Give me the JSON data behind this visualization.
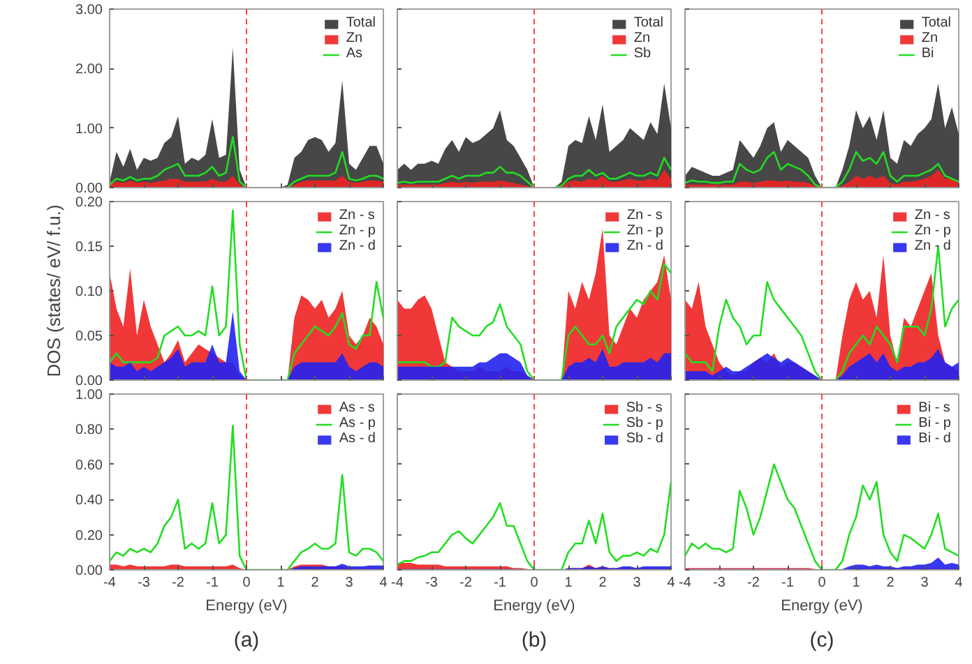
{
  "chart_data": [
    {
      "type": "area",
      "x": [
        -4,
        -3.8,
        -3.6,
        -3.4,
        -3.2,
        -3,
        -2.8,
        -2.6,
        -2.4,
        -2.2,
        -2,
        -1.8,
        -1.6,
        -1.4,
        -1.2,
        -1,
        -0.8,
        -0.6,
        -0.4,
        -0.2,
        0,
        0.2,
        0.4,
        0.6,
        0.8,
        1,
        1.2,
        1.4,
        1.6,
        1.8,
        2,
        2.2,
        2.4,
        2.6,
        2.8,
        3,
        3.2,
        3.4,
        3.6,
        3.8,
        4
      ],
      "series": [
        {
          "name": "Total",
          "color": "#333333",
          "values": [
            0.1,
            0.6,
            0.35,
            0.65,
            0.3,
            0.5,
            0.45,
            0.5,
            0.75,
            0.85,
            1.2,
            0.4,
            0.5,
            0.45,
            0.55,
            1.15,
            0.5,
            0.55,
            2.35,
            0.3,
            0,
            0,
            0,
            0,
            0,
            0,
            0.05,
            0.5,
            0.6,
            0.8,
            0.85,
            0.8,
            0.6,
            0.75,
            1.8,
            0.4,
            0.3,
            0.5,
            0.7,
            0.7,
            0.4
          ]
        },
        {
          "name": "Zn",
          "color": "#ee2222",
          "values": [
            0.05,
            0.1,
            0.08,
            0.12,
            0.08,
            0.1,
            0.08,
            0.1,
            0.12,
            0.15,
            0.15,
            0.1,
            0.1,
            0.1,
            0.1,
            0.15,
            0.1,
            0.1,
            0.2,
            0.05,
            0,
            0,
            0,
            0,
            0,
            0,
            0,
            0.05,
            0.1,
            0.12,
            0.12,
            0.12,
            0.12,
            0.12,
            0.2,
            0.1,
            0.08,
            0.1,
            0.12,
            0.12,
            0.1
          ]
        },
        {
          "name": "As",
          "type": "line",
          "color": "#22dd22",
          "values": [
            0.05,
            0.15,
            0.12,
            0.18,
            0.12,
            0.15,
            0.15,
            0.2,
            0.3,
            0.35,
            0.4,
            0.2,
            0.2,
            0.2,
            0.25,
            0.35,
            0.2,
            0.25,
            0.85,
            0.1,
            0,
            null,
            null,
            null,
            null,
            0,
            0,
            0.1,
            0.15,
            0.2,
            0.2,
            0.2,
            0.2,
            0.25,
            0.6,
            0.15,
            0.12,
            0.15,
            0.2,
            0.2,
            0.15
          ]
        }
      ],
      "xlim": [
        -4,
        4
      ],
      "xticks": [
        -4,
        -3,
        -2,
        -1,
        0,
        1,
        2,
        3,
        4
      ],
      "ylim": [
        0,
        3
      ],
      "yticks": [
        {
          "value": 0,
          "label": "0.00"
        },
        {
          "value": 1,
          "label": "1.00"
        },
        {
          "value": 2,
          "label": "2.00"
        },
        {
          "value": 3,
          "label": "3.00"
        }
      ],
      "tick_labels": "y",
      "legend": "top right",
      "ref_lines": [
        {
          "axis": "x",
          "value": 0,
          "color": "#ff4444",
          "line_style": "dashed"
        }
      ]
    },
    {
      "type": "area",
      "x": [
        -4,
        -3.8,
        -3.6,
        -3.4,
        -3.2,
        -3,
        -2.8,
        -2.6,
        -2.4,
        -2.2,
        -2,
        -1.8,
        -1.6,
        -1.4,
        -1.2,
        -1,
        -0.8,
        -0.6,
        -0.4,
        -0.2,
        0,
        0.2,
        0.4,
        0.6,
        0.8,
        1,
        1.2,
        1.4,
        1.6,
        1.8,
        2,
        2.2,
        2.4,
        2.6,
        2.8,
        3,
        3.2,
        3.4,
        3.6,
        3.8,
        4
      ],
      "series": [
        {
          "name": "Total",
          "color": "#333333",
          "values": [
            0.3,
            0.4,
            0.3,
            0.4,
            0.4,
            0.45,
            0.4,
            0.65,
            0.8,
            0.6,
            0.85,
            0.75,
            0.8,
            0.9,
            1.0,
            1.3,
            0.8,
            0.7,
            0.5,
            0.3,
            0,
            0,
            0,
            0,
            0.1,
            0.7,
            0.8,
            0.75,
            1.2,
            0.8,
            1.4,
            0.6,
            0.7,
            0.8,
            1.0,
            0.9,
            0.8,
            1.1,
            0.9,
            1.75,
            1.0
          ]
        },
        {
          "name": "Zn",
          "color": "#ee2222",
          "values": [
            0.05,
            0.05,
            0.05,
            0.05,
            0.05,
            0.05,
            0.05,
            0.08,
            0.1,
            0.08,
            0.1,
            0.08,
            0.1,
            0.1,
            0.1,
            0.12,
            0.1,
            0.08,
            0.05,
            0.03,
            0,
            0,
            0,
            0,
            0.02,
            0.1,
            0.12,
            0.1,
            0.15,
            0.12,
            0.2,
            0.1,
            0.1,
            0.12,
            0.15,
            0.12,
            0.12,
            0.15,
            0.12,
            0.3,
            0.15
          ]
        },
        {
          "name": "Sb",
          "type": "line",
          "color": "#22dd22",
          "values": [
            0.08,
            0.1,
            0.08,
            0.1,
            0.1,
            0.1,
            0.1,
            0.15,
            0.2,
            0.15,
            0.2,
            0.2,
            0.2,
            0.25,
            0.25,
            0.35,
            0.25,
            0.25,
            0.2,
            0.1,
            0,
            null,
            null,
            0,
            0.03,
            0.15,
            0.2,
            0.2,
            0.3,
            0.2,
            0.25,
            0.15,
            0.15,
            0.2,
            0.25,
            0.2,
            0.2,
            0.25,
            0.2,
            0.5,
            0.3
          ]
        }
      ],
      "xlim": [
        -4,
        4
      ],
      "xticks": [
        -4,
        -3,
        -2,
        -1,
        0,
        1,
        2,
        3,
        4
      ],
      "ylim": [
        0,
        3
      ],
      "yticks": [
        0,
        1,
        2,
        3
      ],
      "tick_labels": false,
      "legend": "top right",
      "ref_lines": [
        {
          "axis": "x",
          "value": 0,
          "color": "#ff4444",
          "line_style": "dashed"
        }
      ]
    },
    {
      "type": "area",
      "x": [
        -4,
        -3.8,
        -3.6,
        -3.4,
        -3.2,
        -3,
        -2.8,
        -2.6,
        -2.4,
        -2.2,
        -2,
        -1.8,
        -1.6,
        -1.4,
        -1.2,
        -1,
        -0.8,
        -0.6,
        -0.4,
        -0.2,
        0,
        0.2,
        0.4,
        0.6,
        0.8,
        1,
        1.2,
        1.4,
        1.6,
        1.8,
        2,
        2.2,
        2.4,
        2.6,
        2.8,
        3,
        3.2,
        3.4,
        3.6,
        3.8,
        4
      ],
      "series": [
        {
          "name": "Total",
          "color": "#333333",
          "values": [
            0.2,
            0.35,
            0.3,
            0.25,
            0.2,
            0.2,
            0.25,
            0.3,
            0.8,
            0.65,
            0.5,
            0.7,
            1.0,
            1.1,
            0.6,
            0.8,
            0.7,
            0.6,
            0.5,
            0.2,
            0,
            0,
            0,
            0.3,
            0.7,
            1.3,
            1.0,
            1.2,
            0.8,
            1.3,
            0.5,
            0.4,
            0.8,
            0.7,
            0.9,
            1.0,
            1.15,
            1.75,
            1.0,
            1.35,
            0.9
          ]
        },
        {
          "name": "Zn",
          "color": "#ee2222",
          "values": [
            0.05,
            0.05,
            0.05,
            0.05,
            0.05,
            0.05,
            0.05,
            0.05,
            0.1,
            0.1,
            0.08,
            0.1,
            0.12,
            0.12,
            0.1,
            0.12,
            0.1,
            0.1,
            0.08,
            0.03,
            0,
            0,
            0,
            0.03,
            0.1,
            0.2,
            0.15,
            0.2,
            0.15,
            0.2,
            0.08,
            0.05,
            0.1,
            0.1,
            0.12,
            0.15,
            0.2,
            0.3,
            0.15,
            0.15,
            0.1
          ]
        },
        {
          "name": "Bi",
          "type": "line",
          "color": "#22dd22",
          "values": [
            0.08,
            0.12,
            0.1,
            0.1,
            0.08,
            0.08,
            0.1,
            0.1,
            0.4,
            0.3,
            0.25,
            0.3,
            0.5,
            0.6,
            0.3,
            0.4,
            0.35,
            0.3,
            0.2,
            0.05,
            0,
            0,
            0,
            0.1,
            0.3,
            0.6,
            0.45,
            0.5,
            0.4,
            0.6,
            0.2,
            0.1,
            0.2,
            0.2,
            0.2,
            0.25,
            0.3,
            0.4,
            0.2,
            0.15,
            0.1
          ]
        }
      ],
      "xlim": [
        -4,
        4
      ],
      "xticks": [
        -4,
        -3,
        -2,
        -1,
        0,
        1,
        2,
        3,
        4
      ],
      "ylim": [
        0,
        3
      ],
      "yticks": [
        0,
        1,
        2,
        3
      ],
      "tick_labels": false,
      "legend": "top right",
      "ref_lines": [
        {
          "axis": "x",
          "value": 0,
          "color": "#ff4444",
          "line_style": "dashed"
        }
      ]
    },
    {
      "type": "area",
      "ylabel": "DOS (states/ eV/ f.u.)",
      "x": [
        -4,
        -3.8,
        -3.6,
        -3.4,
        -3.2,
        -3,
        -2.8,
        -2.6,
        -2.4,
        -2.2,
        -2,
        -1.8,
        -1.6,
        -1.4,
        -1.2,
        -1,
        -0.8,
        -0.6,
        -0.4,
        -0.2,
        0,
        0.2,
        0.4,
        0.6,
        0.8,
        1,
        1.2,
        1.4,
        1.6,
        1.8,
        2,
        2.2,
        2.4,
        2.6,
        2.8,
        3,
        3.2,
        3.4,
        3.6,
        3.8,
        4
      ],
      "series": [
        {
          "name": "Zn - s",
          "color": "#ee2222",
          "values": [
            0.12,
            0.08,
            0.06,
            0.125,
            0.05,
            0.09,
            0.06,
            0.04,
            0.02,
            0.03,
            0.045,
            0.02,
            0.03,
            0.04,
            0.035,
            0.03,
            0.025,
            0.02,
            0.02,
            0.005,
            0,
            0,
            0,
            0,
            0,
            0,
            0,
            0.07,
            0.095,
            0.09,
            0.08,
            0.09,
            0.07,
            0.08,
            0.1,
            0.05,
            0.04,
            0.05,
            0.07,
            0.06,
            0.04
          ]
        },
        {
          "name": "Zn - p",
          "type": "line",
          "color": "#22dd22",
          "values": [
            0.02,
            0.03,
            0.02,
            0.02,
            0.02,
            0.02,
            0.02,
            0.025,
            0.05,
            0.055,
            0.06,
            0.05,
            0.05,
            0.055,
            0.05,
            0.105,
            0.05,
            0.06,
            0.19,
            0.04,
            0,
            0,
            0,
            0,
            0,
            0,
            0,
            0.03,
            0.04,
            0.05,
            0.06,
            0.055,
            0.05,
            0.06,
            0.075,
            0.04,
            0.035,
            0.05,
            0.05,
            0.11,
            0.07
          ]
        },
        {
          "name": "Zn - d",
          "color": "#2222ee",
          "values": [
            0.02,
            0.015,
            0.015,
            0.02,
            0.01,
            0.015,
            0.01,
            0.015,
            0.02,
            0.025,
            0.035,
            0.015,
            0.02,
            0.02,
            0.02,
            0.04,
            0.02,
            0.02,
            0.077,
            0.01,
            0,
            0,
            0,
            0,
            0,
            0,
            0,
            0.015,
            0.02,
            0.02,
            0.02,
            0.02,
            0.02,
            0.02,
            0.03,
            0.015,
            0.01,
            0.015,
            0.02,
            0.02,
            0.015
          ]
        }
      ],
      "xlim": [
        -4,
        4
      ],
      "xticks": [
        -4,
        -3,
        -2,
        -1,
        0,
        1,
        2,
        3,
        4
      ],
      "ylim": [
        0,
        0.2
      ],
      "yticks": [
        {
          "value": 0,
          "label": "0.00"
        },
        {
          "value": 0.05,
          "label": "0.05"
        },
        {
          "value": 0.1,
          "label": "0.10"
        },
        {
          "value": 0.15,
          "label": "0.15"
        },
        {
          "value": 0.2,
          "label": "0.20"
        }
      ],
      "tick_labels": "y",
      "legend": "top right",
      "ref_lines": [
        {
          "axis": "x",
          "value": 0,
          "color": "#ff4444",
          "line_style": "dashed"
        }
      ]
    },
    {
      "type": "area",
      "x": [
        -4,
        -3.8,
        -3.6,
        -3.4,
        -3.2,
        -3,
        -2.8,
        -2.6,
        -2.4,
        -2.2,
        -2,
        -1.8,
        -1.6,
        -1.4,
        -1.2,
        -1,
        -0.8,
        -0.6,
        -0.4,
        -0.2,
        0,
        0.2,
        0.4,
        0.6,
        0.8,
        1,
        1.2,
        1.4,
        1.6,
        1.8,
        2,
        2.2,
        2.4,
        2.6,
        2.8,
        3,
        3.2,
        3.4,
        3.6,
        3.8,
        4
      ],
      "series": [
        {
          "name": "Zn - s",
          "color": "#ee2222",
          "values": [
            0.09,
            0.08,
            0.08,
            0.09,
            0.095,
            0.08,
            0.05,
            0.02,
            0.015,
            0.01,
            0.01,
            0.01,
            0.015,
            0.01,
            0.01,
            0.01,
            0.015,
            0.01,
            0.01,
            0.005,
            0,
            0,
            0,
            0,
            0,
            0.1,
            0.08,
            0.11,
            0.09,
            0.12,
            0.17,
            0.05,
            0.04,
            0.06,
            0.08,
            0.07,
            0.09,
            0.1,
            0.11,
            0.14,
            0.09
          ]
        },
        {
          "name": "Zn - p",
          "type": "line",
          "color": "#22dd22",
          "values": [
            0.02,
            0.02,
            0.02,
            0.02,
            0.02,
            0.015,
            0.015,
            0.02,
            0.07,
            0.06,
            0.055,
            0.05,
            0.05,
            0.06,
            0.065,
            0.085,
            0.06,
            0.05,
            0.04,
            0.01,
            0,
            0,
            0,
            0,
            0,
            0.05,
            0.06,
            0.05,
            0.04,
            0.04,
            0.05,
            0.03,
            0.06,
            0.07,
            0.08,
            0.09,
            0.085,
            0.1,
            0.09,
            0.13,
            0.12
          ]
        },
        {
          "name": "Zn - d",
          "color": "#2222ee",
          "values": [
            0.015,
            0.015,
            0.015,
            0.015,
            0.015,
            0.015,
            0.015,
            0.015,
            0.015,
            0.015,
            0.015,
            0.015,
            0.02,
            0.02,
            0.025,
            0.03,
            0.03,
            0.025,
            0.02,
            0.005,
            0,
            0,
            0,
            0,
            0,
            0.015,
            0.02,
            0.02,
            0.025,
            0.02,
            0.035,
            0.015,
            0.015,
            0.02,
            0.02,
            0.02,
            0.02,
            0.025,
            0.02,
            0.03,
            0.03
          ]
        }
      ],
      "xlim": [
        -4,
        4
      ],
      "xticks": [
        -4,
        -3,
        -2,
        -1,
        0,
        1,
        2,
        3,
        4
      ],
      "ylim": [
        0,
        0.2
      ],
      "yticks": [
        0,
        0.05,
        0.1,
        0.15,
        0.2
      ],
      "tick_labels": false,
      "legend": "top right",
      "ref_lines": [
        {
          "axis": "x",
          "value": 0,
          "color": "#ff4444",
          "line_style": "dashed"
        }
      ]
    },
    {
      "type": "area",
      "x": [
        -4,
        -3.8,
        -3.6,
        -3.4,
        -3.2,
        -3,
        -2.8,
        -2.6,
        -2.4,
        -2.2,
        -2,
        -1.8,
        -1.6,
        -1.4,
        -1.2,
        -1,
        -0.8,
        -0.6,
        -0.4,
        -0.2,
        0,
        0.2,
        0.4,
        0.6,
        0.8,
        1,
        1.2,
        1.4,
        1.6,
        1.8,
        2,
        2.2,
        2.4,
        2.6,
        2.8,
        3,
        3.2,
        3.4,
        3.6,
        3.8,
        4
      ],
      "series": [
        {
          "name": "Zn - s",
          "color": "#ee2222",
          "values": [
            0.09,
            0.08,
            0.11,
            0.06,
            0.04,
            0.02,
            0.01,
            0.005,
            0.01,
            0.01,
            0.02,
            0.025,
            0.02,
            0.03,
            0.015,
            0.02,
            0.02,
            0.015,
            0.01,
            0.005,
            0,
            0,
            0,
            0.05,
            0.09,
            0.11,
            0.09,
            0.1,
            0.07,
            0.14,
            0.05,
            0.02,
            0.07,
            0.06,
            0.08,
            0.1,
            0.12,
            0.05,
            0.02,
            0.015,
            0.01
          ]
        },
        {
          "name": "Zn - p",
          "type": "line",
          "color": "#22dd22",
          "values": [
            0.03,
            0.02,
            0.02,
            0.02,
            0.01,
            0.06,
            0.09,
            0.07,
            0.06,
            0.04,
            0.05,
            0.05,
            0.11,
            0.09,
            0.08,
            0.07,
            0.06,
            0.05,
            0.03,
            0.01,
            0,
            0,
            0,
            0.01,
            0.03,
            0.04,
            0.05,
            0.04,
            0.06,
            0.05,
            0.04,
            0.02,
            0.06,
            0.06,
            0.06,
            0.05,
            0.08,
            0.15,
            0.06,
            0.08,
            0.09
          ]
        },
        {
          "name": "Zn - d",
          "color": "#2222ee",
          "values": [
            0.01,
            0.01,
            0.01,
            0.01,
            0.005,
            0.01,
            0.015,
            0.01,
            0.01,
            0.015,
            0.02,
            0.025,
            0.03,
            0.025,
            0.02,
            0.025,
            0.02,
            0.015,
            0.01,
            0.005,
            0,
            0,
            0,
            0.005,
            0.015,
            0.02,
            0.025,
            0.03,
            0.02,
            0.03,
            0.015,
            0.01,
            0.015,
            0.015,
            0.02,
            0.02,
            0.025,
            0.035,
            0.02,
            0.015,
            0.02
          ]
        }
      ],
      "xlim": [
        -4,
        4
      ],
      "xticks": [
        -4,
        -3,
        -2,
        -1,
        0,
        1,
        2,
        3,
        4
      ],
      "ylim": [
        0,
        0.2
      ],
      "yticks": [
        0,
        0.05,
        0.1,
        0.15,
        0.2
      ],
      "tick_labels": false,
      "legend": "top right",
      "ref_lines": [
        {
          "axis": "x",
          "value": 0,
          "color": "#ff4444",
          "line_style": "dashed"
        }
      ]
    },
    {
      "type": "area",
      "xlabel": "Energy (eV)",
      "annotations": [
        "(a)"
      ],
      "x": [
        -4,
        -3.8,
        -3.6,
        -3.4,
        -3.2,
        -3,
        -2.8,
        -2.6,
        -2.4,
        -2.2,
        -2,
        -1.8,
        -1.6,
        -1.4,
        -1.2,
        -1,
        -0.8,
        -0.6,
        -0.4,
        -0.2,
        0,
        0.2,
        0.4,
        0.6,
        0.8,
        1,
        1.2,
        1.4,
        1.6,
        1.8,
        2,
        2.2,
        2.4,
        2.6,
        2.8,
        3,
        3.2,
        3.4,
        3.6,
        3.8,
        4
      ],
      "series": [
        {
          "name": "As - s",
          "color": "#ee2222",
          "values": [
            0.03,
            0.03,
            0.02,
            0.03,
            0.02,
            0.02,
            0.02,
            0.02,
            0.02,
            0.03,
            0.03,
            0.02,
            0.02,
            0.02,
            0.02,
            0.02,
            0.02,
            0.02,
            0.03,
            0.01,
            0,
            0,
            0,
            0,
            0,
            0,
            0,
            0.02,
            0.03,
            0.03,
            0.03,
            0.03,
            0.02,
            0.02,
            0.02,
            0.01,
            0.01,
            0.01,
            0.01,
            0.01,
            0.01
          ]
        },
        {
          "name": "As - p",
          "type": "line",
          "color": "#22dd22",
          "values": [
            0.05,
            0.1,
            0.08,
            0.12,
            0.1,
            0.12,
            0.1,
            0.15,
            0.25,
            0.3,
            0.4,
            0.12,
            0.15,
            0.12,
            0.15,
            0.38,
            0.15,
            0.2,
            0.82,
            0.08,
            0,
            0,
            0,
            0,
            0,
            0,
            0,
            0.05,
            0.1,
            0.12,
            0.15,
            0.12,
            0.12,
            0.15,
            0.54,
            0.1,
            0.08,
            0.12,
            0.12,
            0.1,
            0.05
          ]
        },
        {
          "name": "As - d",
          "color": "#2222ee",
          "x": [
            1.2,
            1.4,
            1.6,
            1.8,
            2,
            2.2,
            2.4,
            2.6,
            2.8,
            3,
            3.2,
            3.4,
            3.6,
            3.8,
            4
          ],
          "values": [
            0,
            0.01,
            0.02,
            0.02,
            0.02,
            0.02,
            0.02,
            0.02,
            0.035,
            0.02,
            0.02,
            0.02,
            0.025,
            0.025,
            0.025
          ]
        }
      ],
      "xlim": [
        -4,
        4
      ],
      "xticks": [
        -4,
        -3,
        -2,
        -1,
        0,
        1,
        2,
        3,
        4
      ],
      "ylim": [
        0,
        1
      ],
      "yticks": [
        {
          "value": 0,
          "label": "0.00"
        },
        {
          "value": 0.2,
          "label": "0.20"
        },
        {
          "value": 0.4,
          "label": "0.40"
        },
        {
          "value": 0.6,
          "label": "0.60"
        },
        {
          "value": 0.8,
          "label": "0.80"
        },
        {
          "value": 1,
          "label": "1.00"
        }
      ],
      "legend": "top right",
      "ref_lines": [
        {
          "axis": "x",
          "value": 0,
          "color": "#ff4444",
          "line_style": "dashed"
        }
      ]
    },
    {
      "type": "area",
      "xlabel": "Energy (eV)",
      "annotations": [
        "(b)"
      ],
      "x": [
        -4,
        -3.8,
        -3.6,
        -3.4,
        -3.2,
        -3,
        -2.8,
        -2.6,
        -2.4,
        -2.2,
        -2,
        -1.8,
        -1.6,
        -1.4,
        -1.2,
        -1,
        -0.8,
        -0.6,
        -0.4,
        -0.2,
        0,
        0.2,
        0.4,
        0.6,
        0.8,
        1,
        1.2,
        1.4,
        1.6,
        1.8,
        2,
        2.2,
        2.4,
        2.6,
        2.8,
        3,
        3.2,
        3.4,
        3.6,
        3.8,
        4
      ],
      "series": [
        {
          "name": "Sb - s",
          "color": "#ee2222",
          "values": [
            0.04,
            0.04,
            0.04,
            0.03,
            0.03,
            0.03,
            0.03,
            0.02,
            0.02,
            0.02,
            0.02,
            0.02,
            0.02,
            0.02,
            0.02,
            0.02,
            0.02,
            0.01,
            0.01,
            0.005,
            0,
            0,
            0,
            0,
            0,
            0.01,
            0.01,
            0.01,
            0.03,
            0.01,
            0.02,
            0.01,
            0.01,
            0.01,
            0.01,
            0.01,
            0.01,
            0.01,
            0.01,
            0.01,
            0.01
          ]
        },
        {
          "name": "Sb - p",
          "type": "line",
          "color": "#22dd22",
          "values": [
            0.03,
            0.05,
            0.05,
            0.07,
            0.08,
            0.1,
            0.1,
            0.15,
            0.2,
            0.22,
            0.18,
            0.15,
            0.2,
            0.25,
            0.3,
            0.38,
            0.25,
            0.25,
            0.15,
            0.05,
            0,
            0,
            0,
            0,
            0,
            0.1,
            0.15,
            0.15,
            0.28,
            0.15,
            0.32,
            0.1,
            0.05,
            0.08,
            0.08,
            0.1,
            0.08,
            0.12,
            0.1,
            0.2,
            0.5
          ]
        },
        {
          "name": "Sb - d",
          "color": "#2222ee",
          "values": [
            0.005,
            0.005,
            0.005,
            0.005,
            0.005,
            0.005,
            0.005,
            0.005,
            0.005,
            0.005,
            0.005,
            0.005,
            0.005,
            0.005,
            0.005,
            0.005,
            0.005,
            0.005,
            0.005,
            0,
            0,
            0,
            0,
            0,
            0,
            0.01,
            0.01,
            0.01,
            0.02,
            0.01,
            0.02,
            0.01,
            0.01,
            0.02,
            0.02,
            0.01,
            0.02,
            0.02,
            0.02,
            0.02,
            0.02
          ]
        }
      ],
      "xlim": [
        -4,
        4
      ],
      "xticks": [
        -4,
        -3,
        -2,
        -1,
        0,
        1,
        2,
        3,
        4
      ],
      "ylim": [
        0,
        1
      ],
      "yticks": [
        0,
        0.2,
        0.4,
        0.6,
        0.8,
        1
      ],
      "tick_labels": "x",
      "legend": "top right",
      "ref_lines": [
        {
          "axis": "x",
          "value": 0,
          "color": "#ff4444",
          "line_style": "dashed"
        }
      ]
    },
    {
      "type": "area",
      "xlabel": "Energy (eV)",
      "annotations": [
        "(c)"
      ],
      "x": [
        -4,
        -3.8,
        -3.6,
        -3.4,
        -3.2,
        -3,
        -2.8,
        -2.6,
        -2.4,
        -2.2,
        -2,
        -1.8,
        -1.6,
        -1.4,
        -1.2,
        -1,
        -0.8,
        -0.6,
        -0.4,
        -0.2,
        0,
        0.2,
        0.4,
        0.6,
        0.8,
        1,
        1.2,
        1.4,
        1.6,
        1.8,
        2,
        2.2,
        2.4,
        2.6,
        2.8,
        3,
        3.2,
        3.4,
        3.6,
        3.8,
        4
      ],
      "series": [
        {
          "name": "Bi - s",
          "color": "#ee2222",
          "values": [
            0.01,
            0.01,
            0.01,
            0.01,
            0.01,
            0.01,
            0.01,
            0.01,
            0.01,
            0.01,
            0.01,
            0.01,
            0.01,
            0.01,
            0.01,
            0.01,
            0.01,
            0.01,
            0.01,
            0.005,
            0,
            0,
            0,
            0,
            0.005,
            0.01,
            0.01,
            0.01,
            0.01,
            0.01,
            0.01,
            0.01,
            0.01,
            0.01,
            0.01,
            0.01,
            0.01,
            0.01,
            0.01,
            0.01,
            0.01
          ]
        },
        {
          "name": "Bi - p",
          "type": "line",
          "color": "#22dd22",
          "values": [
            0.08,
            0.15,
            0.12,
            0.15,
            0.12,
            0.12,
            0.1,
            0.12,
            0.45,
            0.35,
            0.2,
            0.3,
            0.45,
            0.6,
            0.5,
            0.4,
            0.35,
            0.25,
            0.15,
            0.05,
            0,
            0,
            0,
            0.05,
            0.2,
            0.3,
            0.48,
            0.4,
            0.5,
            0.2,
            0.1,
            0.05,
            0.2,
            0.18,
            0.15,
            0.12,
            0.2,
            0.32,
            0.12,
            0.1,
            0.08
          ]
        },
        {
          "name": "Bi - d",
          "color": "#2222ee",
          "values": [
            0.005,
            0.005,
            0.005,
            0.005,
            0.005,
            0.005,
            0.005,
            0.005,
            0.005,
            0.005,
            0.005,
            0.005,
            0.005,
            0.005,
            0.005,
            0.005,
            0.005,
            0.005,
            0.005,
            0,
            0,
            0,
            0,
            0.005,
            0.02,
            0.03,
            0.03,
            0.02,
            0.03,
            0.02,
            0.02,
            0.01,
            0.02,
            0.02,
            0.03,
            0.03,
            0.04,
            0.07,
            0.03,
            0.04,
            0.03
          ]
        }
      ],
      "xlim": [
        -4,
        4
      ],
      "xticks": [
        -4,
        -3,
        -2,
        -1,
        0,
        1,
        2,
        3,
        4
      ],
      "ylim": [
        0,
        1
      ],
      "yticks": [
        0,
        0.2,
        0.4,
        0.6,
        0.8,
        1
      ],
      "tick_labels": "x",
      "legend": "top right",
      "ref_lines": [
        {
          "axis": "x",
          "value": 0,
          "color": "#ff4444",
          "line_style": "dashed"
        }
      ]
    }
  ]
}
